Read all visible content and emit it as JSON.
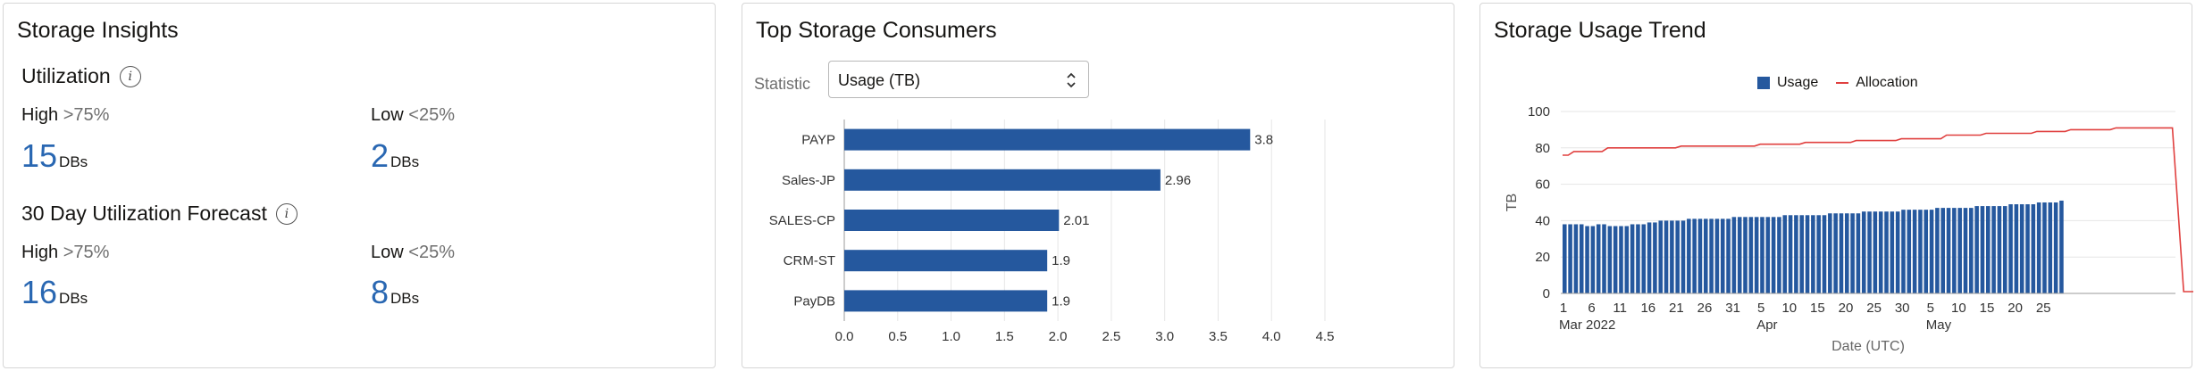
{
  "insights": {
    "title": "Storage Insights",
    "utilization": {
      "title": "Utilization",
      "info_icon": "info-icon",
      "high": {
        "label": "High",
        "threshold": ">75%",
        "value": "15",
        "unit": "DBs"
      },
      "low": {
        "label": "Low",
        "threshold": "<25%",
        "value": "2",
        "unit": "DBs"
      }
    },
    "forecast": {
      "title": "30 Day Utilization Forecast",
      "info_icon": "info-icon",
      "high": {
        "label": "High",
        "threshold": ">75%",
        "value": "16",
        "unit": "DBs"
      },
      "low": {
        "label": "Low",
        "threshold": "<25%",
        "value": "8",
        "unit": "DBs"
      }
    },
    "value_color": "#2967b2"
  },
  "consumers": {
    "title": "Top Storage Consumers",
    "statistic_label": "Statistic",
    "statistic_value": "Usage (TB)",
    "select_icon": "chevron-up-down-icon"
  },
  "trend": {
    "title": "Storage Usage Trend",
    "legend": {
      "usage": "Usage",
      "allocation": "Allocation"
    }
  },
  "chart_data": [
    {
      "type": "bar",
      "orientation": "horizontal",
      "categories": [
        "PAYP",
        "Sales-JP",
        "SALES-CP",
        "CRM-ST",
        "PayDB"
      ],
      "values": [
        3.8,
        2.96,
        2.01,
        1.9,
        1.9
      ],
      "data_labels": [
        "3.8",
        "2.96",
        "2.01",
        "1.9",
        "1.9"
      ],
      "xlim": [
        0,
        4.5
      ],
      "x_ticks": [
        "0.0",
        "0.5",
        "1.0",
        "1.5",
        "2.0",
        "2.5",
        "3.0",
        "3.5",
        "4.0",
        "4.5"
      ],
      "grid": true,
      "color": "#25589e"
    },
    {
      "type": "bar+line",
      "ylabel": "TB",
      "xlabel": "Date (UTC)",
      "ylim": [
        0,
        100
      ],
      "y_ticks": [
        "0",
        "20",
        "40",
        "60",
        "80",
        "100"
      ],
      "x_tick_labels": [
        "1",
        "6",
        "11",
        "16",
        "21",
        "26",
        "31",
        "5",
        "10",
        "15",
        "20",
        "25",
        "30",
        "5",
        "10",
        "15",
        "20",
        "25"
      ],
      "x_group_labels": [
        {
          "label": "Mar 2022",
          "tick": 0
        },
        {
          "label": "Apr",
          "tick": 7
        },
        {
          "label": "May",
          "tick": 13
        }
      ],
      "series": [
        {
          "name": "Usage",
          "kind": "bar",
          "color": "#25589e",
          "values": [
            38,
            38,
            38,
            38,
            37,
            37,
            38,
            38,
            37,
            37,
            37,
            37,
            38,
            38,
            38,
            39,
            39,
            40,
            40,
            40,
            40,
            40,
            41,
            41,
            41,
            41,
            41,
            41,
            41,
            41,
            42,
            42,
            42,
            42,
            42,
            42,
            42,
            42,
            42,
            43,
            43,
            43,
            43,
            43,
            43,
            43,
            43,
            44,
            44,
            44,
            44,
            44,
            44,
            45,
            45,
            45,
            45,
            45,
            45,
            45,
            46,
            46,
            46,
            46,
            46,
            46,
            47,
            47,
            47,
            47,
            47,
            47,
            47,
            48,
            48,
            48,
            48,
            48,
            48,
            49,
            49,
            49,
            49,
            49,
            50,
            50,
            50,
            50,
            51
          ]
        },
        {
          "name": "Allocation",
          "kind": "line",
          "color": "#e0403f",
          "points": [
            [
              0,
              76
            ],
            [
              1,
              76
            ],
            [
              2,
              78
            ],
            [
              7,
              78
            ],
            [
              8,
              80
            ],
            [
              20,
              80
            ],
            [
              21,
              81
            ],
            [
              34,
              81
            ],
            [
              35,
              82
            ],
            [
              42,
              82
            ],
            [
              43,
              83
            ],
            [
              51,
              83
            ],
            [
              52,
              84
            ],
            [
              59,
              84
            ],
            [
              60,
              85
            ],
            [
              67,
              85
            ],
            [
              68,
              87
            ],
            [
              74,
              87
            ],
            [
              75,
              88
            ],
            [
              83,
              88
            ],
            [
              84,
              89
            ],
            [
              89,
              89
            ],
            [
              90,
              90
            ],
            [
              97,
              90
            ],
            [
              98,
              91
            ],
            [
              108,
              91
            ],
            [
              110,
              1
            ],
            [
              115,
              1
            ]
          ]
        }
      ]
    }
  ]
}
